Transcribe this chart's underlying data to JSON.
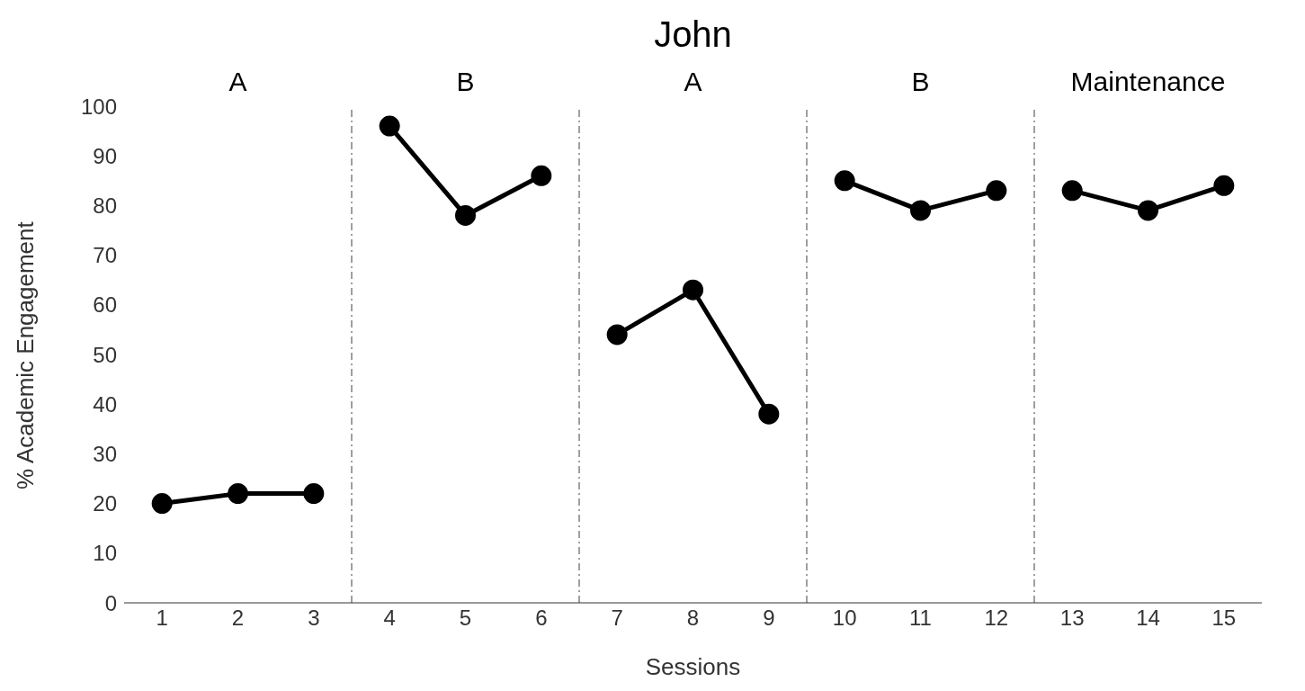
{
  "chart_data": {
    "type": "line",
    "title": "John",
    "xlabel": "Sessions",
    "ylabel": "% Academic Engagement",
    "annotations": [
      "A",
      "B",
      "A",
      "B",
      "Maintenance"
    ],
    "xlim": [
      0.5,
      15.5
    ],
    "xticks": [
      1,
      2,
      3,
      4,
      5,
      6,
      7,
      8,
      9,
      10,
      11,
      12,
      13,
      14,
      15
    ],
    "ylim": [
      0,
      100
    ],
    "yticks": [
      0,
      10,
      20,
      30,
      40,
      50,
      60,
      70,
      80,
      90,
      100
    ],
    "series": [
      {
        "color": "#000000",
        "x": [
          1,
          2,
          3
        ],
        "values": [
          20,
          22,
          22
        ]
      },
      {
        "color": "#000000",
        "x": [
          4,
          5,
          6
        ],
        "values": [
          96,
          78,
          86
        ]
      },
      {
        "color": "#000000",
        "x": [
          7,
          8,
          9
        ],
        "values": [
          54,
          63,
          38
        ]
      },
      {
        "color": "#000000",
        "x": [
          10,
          11,
          12
        ],
        "values": [
          85,
          79,
          83
        ]
      },
      {
        "color": "#000000",
        "x": [
          13,
          14,
          15
        ],
        "values": [
          83,
          79,
          84
        ]
      }
    ],
    "ref_lines": [
      {
        "axis": "x",
        "value": 3.5,
        "color": "#808080",
        "line_style": "dashed"
      },
      {
        "axis": "x",
        "value": 6.5,
        "color": "#808080",
        "line_style": "dashed"
      },
      {
        "axis": "x",
        "value": 9.5,
        "color": "#808080",
        "line_style": "dashed"
      },
      {
        "axis": "x",
        "value": 12.5,
        "color": "#808080",
        "line_style": "dashed"
      }
    ],
    "grid": false,
    "legend": false,
    "marker": "circle",
    "line_style": "solid"
  }
}
